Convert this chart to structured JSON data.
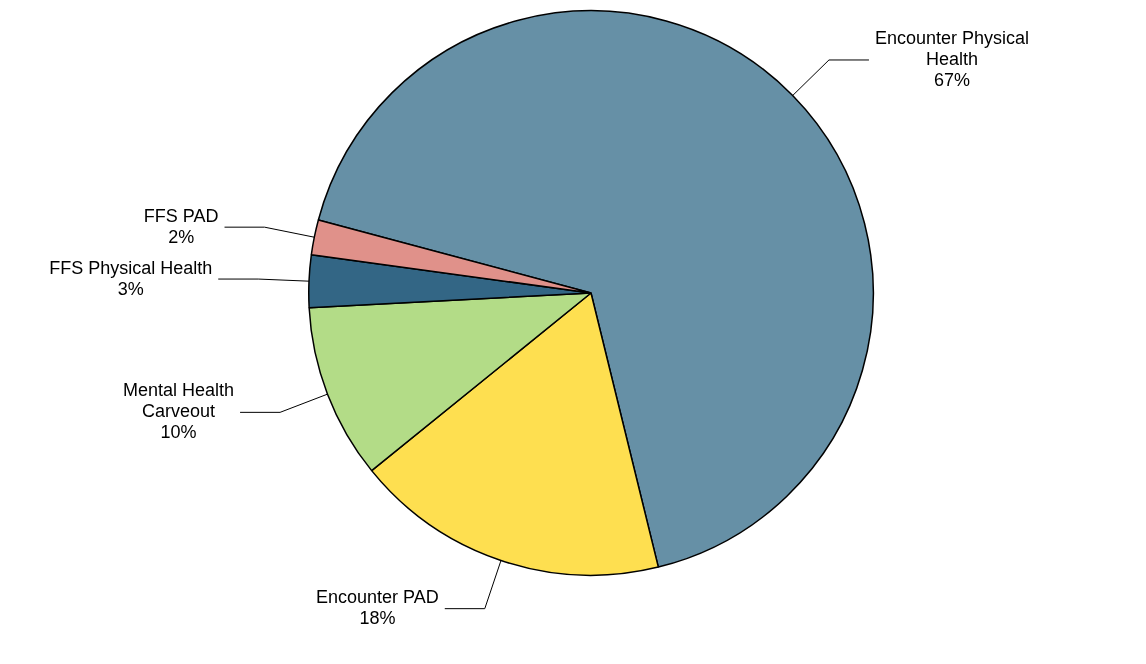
{
  "chart_data": {
    "type": "pie",
    "categories": [
      "Encounter Physical Health",
      "Encounter PAD",
      "Mental Health Carveout",
      "FFS Physical Health",
      "FFS PAD"
    ],
    "values": [
      67,
      18,
      10,
      3,
      2
    ],
    "value_labels": [
      "67%",
      "18%",
      "10%",
      "3%",
      "2%"
    ],
    "colors": [
      "#6690a6",
      "#fedf50",
      "#b3dc87",
      "#336685",
      "#e0918a"
    ],
    "legend": false
  }
}
